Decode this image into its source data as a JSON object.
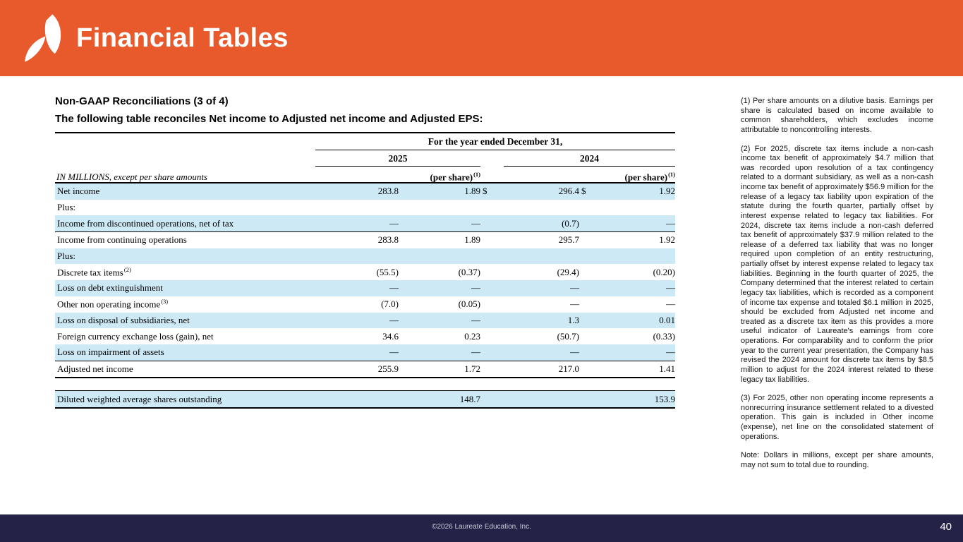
{
  "header": {
    "title": "Financial Tables",
    "logo_icon": "leaf-icon",
    "accent_color": "#E8592B"
  },
  "section": {
    "heading": "Non-GAAP Reconciliations (3 of 4)",
    "subheading": "The following table reconciles Net income to Adjusted net income and Adjusted EPS:"
  },
  "table": {
    "span_header": "For the year ended December 31,",
    "row_header_label": "IN MILLIONS, except per share amounts",
    "years": [
      "2025",
      "2024"
    ],
    "per_share_label": "(per share)",
    "per_share_sup": "(1)",
    "stripe_color": "#CDE9F6",
    "rows": [
      {
        "label": "Net income",
        "sup": "",
        "c": [
          "283.8",
          "1.89",
          "$",
          "296.4",
          "$",
          "1.92"
        ],
        "shade": true,
        "cls": ""
      },
      {
        "label": "Plus:",
        "sup": "",
        "c": [
          "",
          "",
          "",
          "",
          "",
          ""
        ],
        "shade": false,
        "cls": ""
      },
      {
        "label": "Income from discontinued operations, net of tax",
        "sup": "",
        "c": [
          "—",
          "—",
          "",
          "(0.7)",
          "",
          "—"
        ],
        "shade": true,
        "cls": "bb"
      },
      {
        "label": "Income from continuing operations",
        "sup": "",
        "c": [
          "283.8",
          "1.89",
          "",
          "295.7",
          "",
          "1.92"
        ],
        "shade": false,
        "cls": ""
      },
      {
        "label": "Plus:",
        "sup": "",
        "c": [
          "",
          "",
          "",
          "",
          "",
          ""
        ],
        "shade": true,
        "cls": ""
      },
      {
        "label": "Discrete tax items",
        "sup": "(2)",
        "c": [
          "(55.5)",
          "(0.37)",
          "",
          "(29.4)",
          "",
          "(0.20)"
        ],
        "shade": false,
        "cls": ""
      },
      {
        "label": "Loss on debt extinguishment",
        "sup": "",
        "c": [
          "—",
          "—",
          "",
          "—",
          "",
          "—"
        ],
        "shade": true,
        "cls": ""
      },
      {
        "label": "Other non operating income",
        "sup": "(3)",
        "c": [
          "(7.0)",
          "(0.05)",
          "",
          "—",
          "",
          "—"
        ],
        "shade": false,
        "cls": ""
      },
      {
        "label": "Loss on disposal of subsidiaries, net",
        "sup": "",
        "c": [
          "—",
          "—",
          "",
          "1.3",
          "",
          "0.01"
        ],
        "shade": true,
        "cls": ""
      },
      {
        "label": "Foreign currency exchange loss (gain), net",
        "sup": "",
        "c": [
          "34.6",
          "0.23",
          "",
          "(50.7)",
          "",
          "(0.33)"
        ],
        "shade": false,
        "cls": ""
      },
      {
        "label": "Loss on impairment of assets",
        "sup": "",
        "c": [
          "—",
          "—",
          "",
          "—",
          "",
          "—"
        ],
        "shade": true,
        "cls": "bb"
      },
      {
        "label": "Adjusted net income",
        "sup": "",
        "c": [
          "255.9",
          "1.72",
          "",
          "217.0",
          "",
          "1.41"
        ],
        "shade": false,
        "cls": "bb2"
      },
      {
        "label": "Diluted weighted average shares outstanding",
        "sup": "",
        "c": [
          "",
          "148.7",
          "",
          "",
          "",
          "153.9"
        ],
        "shade": true,
        "cls": "bb2 standalone"
      }
    ]
  },
  "footnotes": [
    "(1) Per share amounts on a dilutive basis. Earnings per share is calculated based on income available to common shareholders, which excludes income attributable to noncontrolling interests.",
    "(2) For 2025, discrete tax items include a non-cash income tax benefit of approximately $4.7 million that was recorded upon resolution of a tax contingency related to a dormant subsidiary, as well as a non-cash income tax benefit of approximately $56.9 million for the release of a legacy tax liability upon expiration of the statute during the fourth quarter, partially offset by interest expense related to legacy tax liabilities. For 2024, discrete tax items include a non-cash deferred tax benefit of approximately $37.9 million related to the release of a deferred tax liability that was no longer required upon completion of an entity restructuring, partially offset by interest expense related to legacy tax liabilities. Beginning in the fourth quarter of 2025, the Company determined that the interest related to certain legacy tax liabilities, which is recorded as a component of income tax expense and totaled $6.1 million in 2025, should be excluded from Adjusted net income and treated as a discrete tax item as this provides a more useful indicator of Laureate's earnings from core operations. For comparability and to conform the prior year to the current year presentation, the Company has revised the 2024 amount for discrete tax items by $8.5 million to adjust for the 2024 interest related to these legacy tax liabilities.",
    "(3) For 2025, other non operating income represents a nonrecurring insurance settlement related to a divested operation. This gain is included in Other income (expense), net line on the consolidated statement of operations.",
    "Note:  Dollars in millions, except per share amounts, may not sum to total due to rounding."
  ],
  "footer": {
    "copyright": "©2026 Laureate Education, Inc.",
    "page_number": "40",
    "bg_color": "#252248"
  }
}
